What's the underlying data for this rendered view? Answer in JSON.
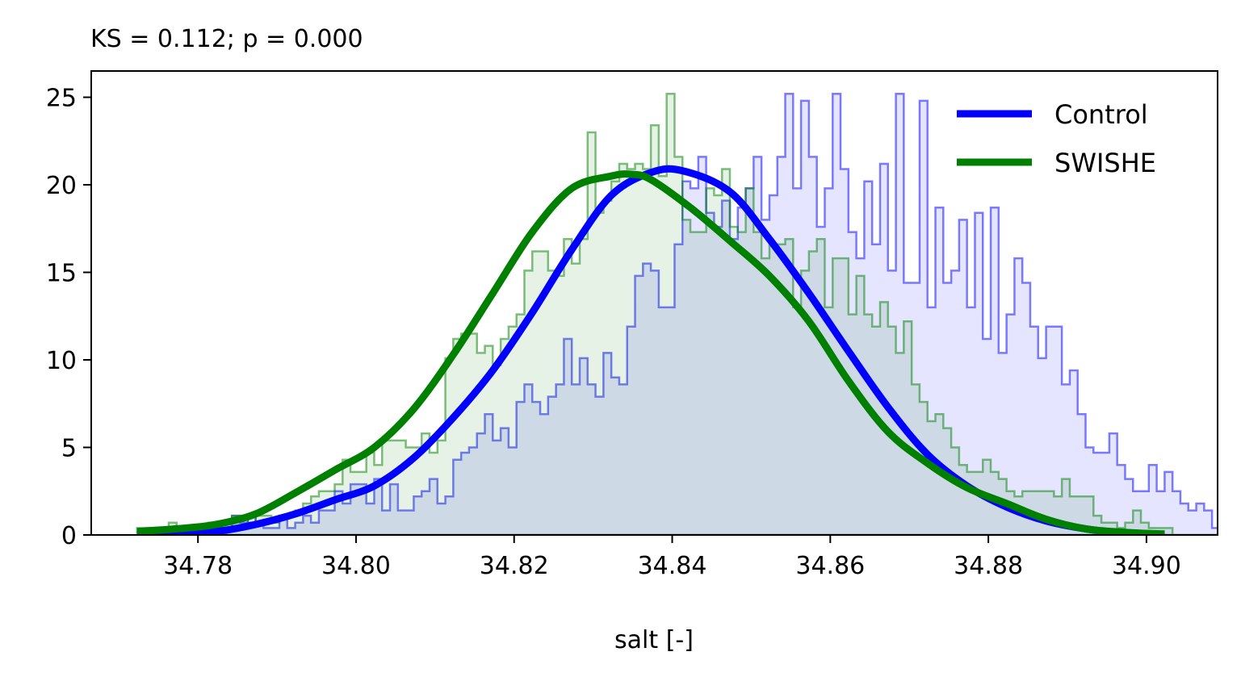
{
  "chart_data": {
    "type": "histogram+kde",
    "title": "KS = 0.112; p = 0.000",
    "xlabel": "salt [-]",
    "ylabel": "",
    "xlim": [
      34.7665,
      34.909
    ],
    "ylim": [
      0,
      26.5
    ],
    "xticks": [
      34.78,
      34.8,
      34.82,
      34.84,
      34.86,
      34.88,
      34.9
    ],
    "xtick_labels": [
      "34.78",
      "34.80",
      "34.82",
      "34.84",
      "34.86",
      "34.88",
      "34.90"
    ],
    "yticks": [
      0,
      5,
      10,
      15,
      20,
      25
    ],
    "ytick_labels": [
      "0",
      "5",
      "10",
      "15",
      "20",
      "25"
    ],
    "grid": false,
    "legend_position": "top-right",
    "series": [
      {
        "name": "Control",
        "color": "#0000ff",
        "hist_x_start": 34.7723,
        "hist_bin_width": 0.001,
        "hist_counts": [
          0,
          0,
          0,
          0,
          0,
          0,
          0,
          0,
          0,
          0,
          0.4,
          0.4,
          1.1,
          0.7,
          1.1,
          0.7,
          0.4,
          0.4,
          1.1,
          0.4,
          0.7,
          1.1,
          0.7,
          1.4,
          1.4,
          2.5,
          1.8,
          2.9,
          2.9,
          1.8,
          3.2,
          1.4,
          2.9,
          1.4,
          1.4,
          2.2,
          2.5,
          3.2,
          1.8,
          2.2,
          4.3,
          4.7,
          5.0,
          5.8,
          6.9,
          5.4,
          6.1,
          5.0,
          7.6,
          8.6,
          7.6,
          6.9,
          7.9,
          8.6,
          11.2,
          8.6,
          10.1,
          8.6,
          7.9,
          10.4,
          9.0,
          8.6,
          11.9,
          14.8,
          15.5,
          15.1,
          13.0,
          13.0,
          16.6,
          20.2,
          19.8,
          21.6,
          18.4,
          17.6,
          19.1,
          16.9,
          18.7,
          19.8,
          21.6,
          18.0,
          19.4,
          21.6,
          25.2,
          19.8,
          24.8,
          21.6,
          17.6,
          19.8,
          25.2,
          20.9,
          17.3,
          15.8,
          20.2,
          16.6,
          21.2,
          15.1,
          25.2,
          14.4,
          14.4,
          24.8,
          13.0,
          18.7,
          14.4,
          15.1,
          18.0,
          13.0,
          18.4,
          11.2,
          18.7,
          10.4,
          12.6,
          15.8,
          14.4,
          11.9,
          10.1,
          11.9,
          11.9,
          8.6,
          9.4,
          6.9,
          5.0,
          4.7,
          4.7,
          5.8,
          4.0,
          3.2,
          2.5,
          2.5,
          4.0,
          2.5,
          3.6,
          2.5,
          1.8,
          1.4,
          1.8,
          1.4,
          0.4,
          0.7,
          0.7,
          0.4,
          0.4,
          0,
          0,
          0,
          0,
          0,
          0,
          0,
          0,
          0,
          0,
          0,
          0,
          0,
          0,
          0.4
        ],
        "kde_x": [
          34.7723,
          34.7773,
          34.7823,
          34.7873,
          34.7923,
          34.7973,
          34.8023,
          34.8073,
          34.8123,
          34.8173,
          34.8223,
          34.8273,
          34.8323,
          34.8373,
          34.8413,
          34.8473,
          34.8523,
          34.8573,
          34.8623,
          34.8673,
          34.8723,
          34.8773,
          34.8823,
          34.8873,
          34.8923,
          34.8973,
          34.9023
        ],
        "kde_y": [
          0.05,
          0.1,
          0.2,
          0.6,
          1.2,
          2.0,
          2.8,
          4.4,
          6.7,
          9.4,
          12.7,
          16.3,
          19.4,
          20.7,
          20.8,
          19.6,
          16.9,
          13.8,
          10.5,
          7.3,
          4.6,
          2.8,
          1.6,
          0.8,
          0.35,
          0.1,
          0.05
        ]
      },
      {
        "name": "SWISHE",
        "color": "#008000",
        "hist_x_start": 34.7723,
        "hist_bin_width": 0.001,
        "hist_counts": [
          0.4,
          0.4,
          0.4,
          0.4,
          0.7,
          0.4,
          0.4,
          0.4,
          0.4,
          0.7,
          0.7,
          0.7,
          1.1,
          1.1,
          0.7,
          1.1,
          1.1,
          0.7,
          1.1,
          1.1,
          1.4,
          1.8,
          2.2,
          2.5,
          2.5,
          2.9,
          4.3,
          3.6,
          3.6,
          4.7,
          4.0,
          5.4,
          5.4,
          5.4,
          5.0,
          5.0,
          5.8,
          4.7,
          5.4,
          10.1,
          11.2,
          11.5,
          11.5,
          10.4,
          10.8,
          9.7,
          11.2,
          11.9,
          12.6,
          15.1,
          16.2,
          16.2,
          15.1,
          14.8,
          16.9,
          15.5,
          16.9,
          23.0,
          18.4,
          19.1,
          20.2,
          21.2,
          20.9,
          21.2,
          20.9,
          23.4,
          20.5,
          25.2,
          21.6,
          18.0,
          17.3,
          17.3,
          19.8,
          19.4,
          20.9,
          17.6,
          17.3,
          19.8,
          17.3,
          15.8,
          16.6,
          16.6,
          16.9,
          13.0,
          15.1,
          16.2,
          16.9,
          13.0,
          15.8,
          15.8,
          12.6,
          14.8,
          12.6,
          11.9,
          13.3,
          11.9,
          10.4,
          12.2,
          8.6,
          7.6,
          6.5,
          6.9,
          6.1,
          5.0,
          4.0,
          3.6,
          3.6,
          4.3,
          3.6,
          3.2,
          2.5,
          2.2,
          2.5,
          2.5,
          2.5,
          2.5,
          2.2,
          3.2,
          2.2,
          2.2,
          2.2,
          1.1,
          0.7,
          0.7,
          0.4,
          0.7,
          1.4,
          0.7,
          0.4,
          0.4,
          0.4,
          0,
          0,
          0,
          0,
          0,
          0,
          0,
          0,
          0,
          0,
          0,
          0,
          0,
          0,
          0,
          0,
          0,
          0,
          0,
          0,
          0.4
        ],
        "kde_x": [
          34.7723,
          34.7773,
          34.7823,
          34.7873,
          34.7923,
          34.7973,
          34.8023,
          34.8073,
          34.8123,
          34.8173,
          34.8223,
          34.8273,
          34.8323,
          34.8348,
          34.8373,
          34.8423,
          34.8473,
          34.8523,
          34.8573,
          34.8623,
          34.8673,
          34.8723,
          34.8773,
          34.8823,
          34.8873,
          34.8923,
          34.8973,
          34.9023
        ],
        "kde_y": [
          0.2,
          0.35,
          0.6,
          1.2,
          2.4,
          3.7,
          5.0,
          7.2,
          10.3,
          13.8,
          17.3,
          19.8,
          20.5,
          20.6,
          20.3,
          18.7,
          16.8,
          14.8,
          12.2,
          8.8,
          5.9,
          4.1,
          2.7,
          1.8,
          0.9,
          0.35,
          0.15,
          0.05
        ]
      }
    ]
  }
}
